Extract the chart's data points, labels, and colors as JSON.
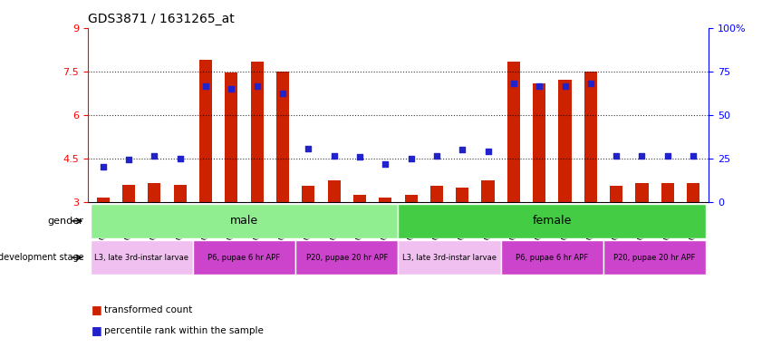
{
  "title": "GDS3871 / 1631265_at",
  "samples": [
    "GSM572821",
    "GSM572822",
    "GSM572823",
    "GSM572824",
    "GSM572829",
    "GSM572830",
    "GSM572831",
    "GSM572832",
    "GSM572837",
    "GSM572838",
    "GSM572839",
    "GSM572840",
    "GSM572817",
    "GSM572818",
    "GSM572819",
    "GSM572820",
    "GSM572825",
    "GSM572826",
    "GSM572827",
    "GSM572828",
    "GSM572833",
    "GSM572834",
    "GSM572835",
    "GSM572836"
  ],
  "bar_heights": [
    3.15,
    3.6,
    3.65,
    3.6,
    7.9,
    7.45,
    7.85,
    7.5,
    3.55,
    3.75,
    3.25,
    3.15,
    3.25,
    3.55,
    3.5,
    3.75,
    7.85,
    7.1,
    7.2,
    7.5,
    3.55,
    3.65,
    3.65,
    3.65
  ],
  "blue_dots": [
    4.2,
    4.45,
    4.6,
    4.5,
    7.0,
    6.9,
    7.0,
    6.75,
    4.85,
    4.6,
    4.55,
    4.3,
    4.5,
    4.6,
    4.8,
    4.75,
    7.1,
    7.0,
    7.0,
    7.1,
    4.6,
    4.6,
    4.6,
    4.6
  ],
  "bar_color": "#cc2200",
  "dot_color": "#2222cc",
  "ylim": [
    3.0,
    9.0
  ],
  "yticks": [
    3.0,
    4.5,
    6.0,
    7.5,
    9.0
  ],
  "ytick_labels": [
    "3",
    "4.5",
    "6",
    "7.5",
    "9"
  ],
  "right_yticks": [
    0,
    25,
    50,
    75,
    100
  ],
  "right_ytick_labels": [
    "0",
    "25",
    "50",
    "75",
    "100%"
  ],
  "dotted_lines": [
    4.5,
    6.0,
    7.5
  ],
  "gender_male_span": [
    0,
    11
  ],
  "gender_female_span": [
    12,
    23
  ],
  "gender_color_male": "#90ee90",
  "gender_color_female": "#44cc44",
  "dev_stages_male": [
    {
      "label": "L3, late 3rd-instar larvae",
      "start": 0,
      "end": 3,
      "color": "#f0c0f0"
    },
    {
      "label": "P6, pupae 6 hr APF",
      "start": 4,
      "end": 7,
      "color": "#cc44cc"
    },
    {
      "label": "P20, pupae 20 hr APF",
      "start": 8,
      "end": 11,
      "color": "#cc44cc"
    }
  ],
  "dev_stages_female": [
    {
      "label": "L3, late 3rd-instar larvae",
      "start": 12,
      "end": 15,
      "color": "#f0c0f0"
    },
    {
      "label": "P6, pupae 6 hr APF",
      "start": 16,
      "end": 19,
      "color": "#cc44cc"
    },
    {
      "label": "P20, pupae 20 hr APF",
      "start": 20,
      "end": 23,
      "color": "#cc44cc"
    }
  ],
  "legend_bar_label": "transformed count",
  "legend_dot_label": "percentile rank within the sample",
  "background_color": "#ffffff"
}
